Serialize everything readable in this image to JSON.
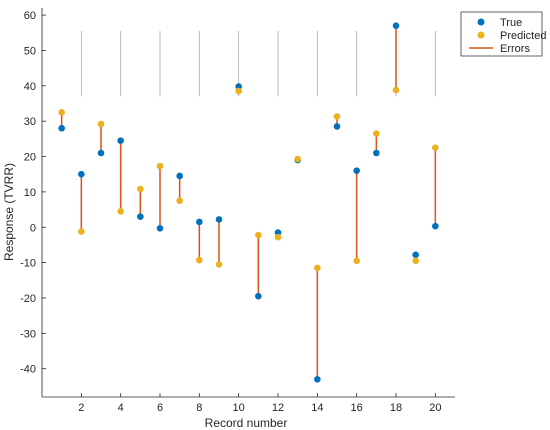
{
  "chart_data": {
    "type": "scatter",
    "xlabel": "Record number",
    "ylabel": "Response (TVRR)",
    "xlim": [
      0,
      21
    ],
    "ylim": [
      -48,
      62
    ],
    "xticks": [
      2,
      4,
      6,
      8,
      10,
      12,
      14,
      16,
      18,
      20
    ],
    "yticks": [
      -40,
      -30,
      -20,
      -10,
      0,
      10,
      20,
      30,
      40,
      50,
      60
    ],
    "grid": false,
    "legend_position": "top-right",
    "colors": {
      "true": "#0072BD",
      "predicted": "#EDB120",
      "errors": "#D95319"
    },
    "x": [
      1,
      2,
      3,
      4,
      5,
      6,
      7,
      8,
      9,
      10,
      11,
      12,
      13,
      14,
      15,
      16,
      17,
      18,
      19,
      20
    ],
    "series": [
      {
        "name": "True",
        "values": [
          28,
          15,
          21,
          24.5,
          3,
          -0.3,
          14.5,
          1.5,
          2.2,
          39.8,
          -19.5,
          -1.5,
          19,
          -43,
          28.5,
          16,
          21,
          57,
          -7.8,
          0.3
        ]
      },
      {
        "name": "Predicted",
        "values": [
          32.5,
          -1.2,
          29.2,
          4.5,
          10.8,
          17.3,
          7.5,
          -9.3,
          -10.5,
          38.5,
          -2.2,
          -2.8,
          19.3,
          -11.5,
          31.3,
          -9.5,
          26.5,
          38.8,
          -9.5,
          22.5
        ]
      },
      {
        "name": "Errors"
      }
    ]
  }
}
